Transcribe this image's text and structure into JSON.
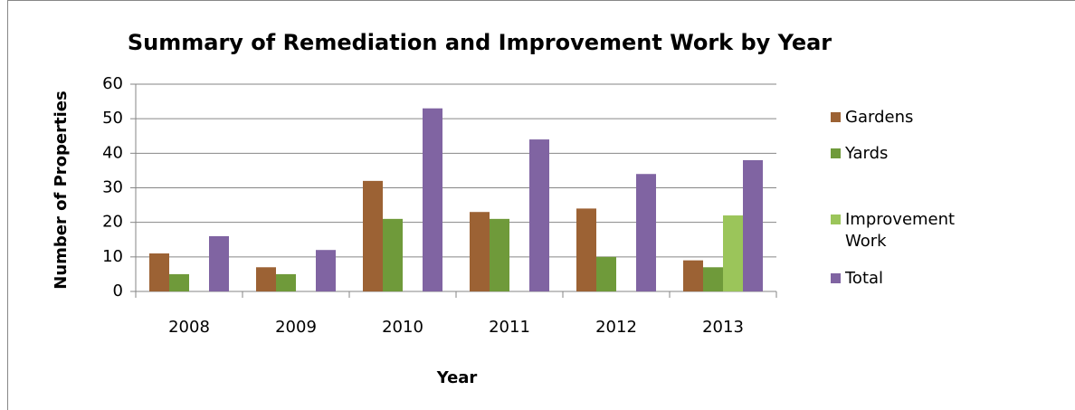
{
  "chart_data": {
    "type": "bar",
    "title": "Summary of Remediation and Improvement Work by Year",
    "x_label": "Year",
    "y_label": "Number of Properties",
    "categories": [
      "2008",
      "2009",
      "2010",
      "2011",
      "2012",
      "2013"
    ],
    "series": [
      {
        "name": "Gardens",
        "color": "#9c6234",
        "values": [
          11,
          7,
          32,
          23,
          24,
          9
        ]
      },
      {
        "name": "Yards",
        "color": "#6f9a3a",
        "values": [
          5,
          5,
          21,
          21,
          10,
          7
        ]
      },
      {
        "name": "Improvement Work",
        "color": "#9bc55a",
        "values": [
          null,
          null,
          null,
          null,
          null,
          22
        ]
      },
      {
        "name": "Total",
        "color": "#8064a2",
        "values": [
          16,
          12,
          53,
          44,
          34,
          38
        ]
      }
    ],
    "ylim": [
      0,
      60
    ],
    "yticks": [
      0,
      10,
      20,
      30,
      40,
      50,
      60
    ],
    "grid": true,
    "legend": "right"
  }
}
